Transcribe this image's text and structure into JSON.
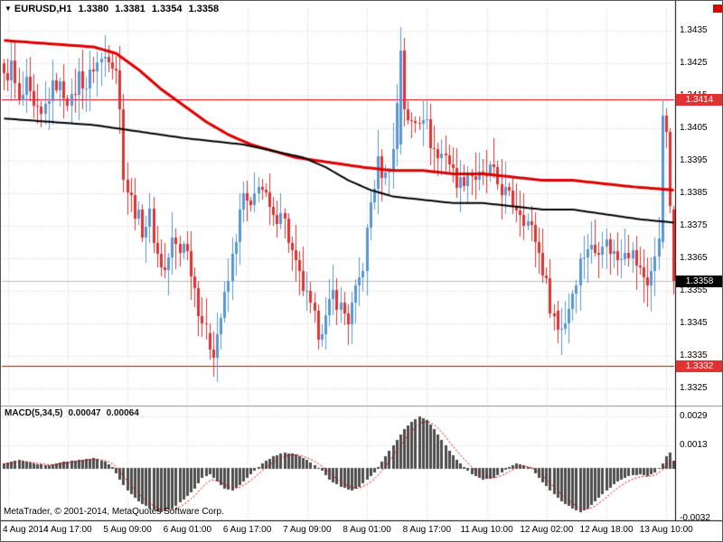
{
  "header": {
    "marker": "▼",
    "symbol": "EURUSD,H1",
    "open": "1.3380",
    "high": "1.3381",
    "low": "1.3354",
    "close": "1.3358"
  },
  "macd_header": {
    "title": "MACD(5,34,5)",
    "value": "0.00047",
    "signal": "0.00064"
  },
  "footer": {
    "copyright": "MetaTrader, © 2001-2014, MetaQuotes Software Corp."
  },
  "colors": {
    "bull": "#5a96d2",
    "bear": "#e03232",
    "ma_fast": "#dd0000",
    "ma_slow": "#000000",
    "grid": "#cdcdcd",
    "histogram": "#4d4d4d",
    "signal": "#dd0000",
    "hline": "#dd0000",
    "badge_red_bg": "#e03232",
    "badge_black_bg": "#000000",
    "current_line": "#c0c0c0",
    "separator": "#909090",
    "frame": "#000000"
  },
  "price_scale": {
    "labels": [
      "1.3435",
      "1.3425",
      "1.3415",
      "1.3405",
      "1.3395",
      "1.3385",
      "1.3375",
      "1.3365",
      "1.3355",
      "1.3345",
      "1.3335",
      "1.3325"
    ]
  },
  "macd_scale": {
    "labels": [
      {
        "text": "0.0029",
        "value": 0.0029
      },
      {
        "text": "0.0013",
        "value": 0.0013
      },
      {
        "text": "-0.0032",
        "value": -0.0032
      }
    ]
  },
  "time_scale": {
    "labels": [
      {
        "text": "4 Aug 2014",
        "candle": 1
      },
      {
        "text": "4 Aug 17:00",
        "candle": 17
      },
      {
        "text": "5 Aug 09:00",
        "candle": 33
      },
      {
        "text": "6 Aug 01:00",
        "candle": 49
      },
      {
        "text": "6 Aug 17:00",
        "candle": 65
      },
      {
        "text": "7 Aug 09:00",
        "candle": 81
      },
      {
        "text": "8 Aug 01:00",
        "candle": 97
      },
      {
        "text": "8 Aug 17:00",
        "candle": 113
      },
      {
        "text": "11 Aug 10:00",
        "candle": 129
      },
      {
        "text": "12 Aug 02:00",
        "candle": 145
      },
      {
        "text": "12 Aug 18:00",
        "candle": 161
      },
      {
        "text": "13 Aug 10:00",
        "candle": 177
      }
    ]
  },
  "chart_data": {
    "type": "candlestick",
    "symbol": "EURUSD",
    "timeframe": "H1",
    "title": "EURUSD,H1",
    "last_ohlc": {
      "open": 1.338,
      "high": 1.3381,
      "low": 1.3354,
      "close": 1.3358
    },
    "price_axis": {
      "min": 1.332,
      "max": 1.3443,
      "tick_step": 0.001,
      "ticks": [
        1.3435,
        1.3425,
        1.3415,
        1.3405,
        1.3395,
        1.3385,
        1.3375,
        1.3365,
        1.3355,
        1.3345,
        1.3335,
        1.3325
      ]
    },
    "candles": {
      "count": 180,
      "close_waypoints": [
        [
          0,
          1.342
        ],
        [
          2,
          1.3424
        ],
        [
          4,
          1.3412
        ],
        [
          6,
          1.3418
        ],
        [
          8,
          1.341
        ],
        [
          10,
          1.3408
        ],
        [
          12,
          1.3415
        ],
        [
          14,
          1.3419
        ],
        [
          16,
          1.3416
        ],
        [
          18,
          1.3413
        ],
        [
          20,
          1.3421
        ],
        [
          22,
          1.3418
        ],
        [
          24,
          1.3424
        ],
        [
          26,
          1.3426
        ],
        [
          28,
          1.3428
        ],
        [
          30,
          1.3424
        ],
        [
          31,
          1.341
        ],
        [
          32,
          1.3392
        ],
        [
          33,
          1.3386
        ],
        [
          35,
          1.338
        ],
        [
          37,
          1.3374
        ],
        [
          39,
          1.3378
        ],
        [
          41,
          1.3366
        ],
        [
          43,
          1.3361
        ],
        [
          45,
          1.337
        ],
        [
          47,
          1.3367
        ],
        [
          48,
          1.3371
        ],
        [
          50,
          1.3362
        ],
        [
          52,
          1.335
        ],
        [
          54,
          1.3342
        ],
        [
          56,
          1.3337
        ],
        [
          58,
          1.3347
        ],
        [
          60,
          1.3358
        ],
        [
          62,
          1.3372
        ],
        [
          64,
          1.3384
        ],
        [
          66,
          1.3379
        ],
        [
          68,
          1.3389
        ],
        [
          70,
          1.3383
        ],
        [
          72,
          1.3376
        ],
        [
          74,
          1.3381
        ],
        [
          76,
          1.3371
        ],
        [
          78,
          1.3362
        ],
        [
          80,
          1.3356
        ],
        [
          82,
          1.3349
        ],
        [
          84,
          1.3343
        ],
        [
          86,
          1.3346
        ],
        [
          88,
          1.3354
        ],
        [
          90,
          1.335
        ],
        [
          92,
          1.3346
        ],
        [
          94,
          1.3354
        ],
        [
          96,
          1.3363
        ],
        [
          98,
          1.3382
        ],
        [
          100,
          1.3394
        ],
        [
          102,
          1.339
        ],
        [
          104,
          1.3398
        ],
        [
          106,
          1.3429
        ],
        [
          107,
          1.3412
        ],
        [
          108,
          1.3406
        ],
        [
          110,
          1.3408
        ],
        [
          112,
          1.341
        ],
        [
          114,
          1.3401
        ],
        [
          116,
          1.3396
        ],
        [
          118,
          1.3398
        ],
        [
          120,
          1.3391
        ],
        [
          122,
          1.3388
        ],
        [
          124,
          1.3392
        ],
        [
          126,
          1.339
        ],
        [
          128,
          1.3389
        ],
        [
          130,
          1.3392
        ],
        [
          132,
          1.3388
        ],
        [
          134,
          1.3385
        ],
        [
          136,
          1.3382
        ],
        [
          138,
          1.338
        ],
        [
          140,
          1.3376
        ],
        [
          142,
          1.3371
        ],
        [
          144,
          1.3362
        ],
        [
          146,
          1.3351
        ],
        [
          148,
          1.3343
        ],
        [
          150,
          1.3346
        ],
        [
          152,
          1.3355
        ],
        [
          154,
          1.3364
        ],
        [
          156,
          1.3369
        ],
        [
          158,
          1.3367
        ],
        [
          160,
          1.3371
        ],
        [
          162,
          1.3368
        ],
        [
          164,
          1.3365
        ],
        [
          166,
          1.3369
        ],
        [
          168,
          1.3366
        ],
        [
          170,
          1.3361
        ],
        [
          172,
          1.3358
        ],
        [
          174,
          1.3364
        ],
        [
          175,
          1.3372
        ],
        [
          176,
          1.3409
        ],
        [
          177,
          1.3404
        ],
        [
          178,
          1.3381
        ],
        [
          179,
          1.3358
        ]
      ],
      "overrides": {
        "55": [
          1.3342,
          1.3345,
          1.3334,
          1.3337
        ],
        "106": [
          1.34,
          1.3436,
          1.3397,
          1.3429
        ],
        "148": [
          1.3349,
          1.3352,
          1.3339,
          1.3343
        ],
        "176": [
          1.337,
          1.3414,
          1.3368,
          1.3409
        ],
        "177": [
          1.3409,
          1.3411,
          1.3399,
          1.3404
        ],
        "178": [
          1.3404,
          1.3405,
          1.3379,
          1.3381
        ],
        "179": [
          1.338,
          1.3381,
          1.3354,
          1.3358
        ]
      },
      "wick_noise": 0.0007
    },
    "moving_averages": [
      {
        "name": "ma-fast-red",
        "width": 3,
        "waypoints": [
          [
            0,
            1.3432
          ],
          [
            12,
            1.3431
          ],
          [
            24,
            1.343
          ],
          [
            30,
            1.3428
          ],
          [
            36,
            1.3423
          ],
          [
            42,
            1.3417
          ],
          [
            48,
            1.3412
          ],
          [
            54,
            1.3407
          ],
          [
            60,
            1.3403
          ],
          [
            66,
            1.34
          ],
          [
            72,
            1.3398
          ],
          [
            78,
            1.3396
          ],
          [
            84,
            1.3395
          ],
          [
            90,
            1.3394
          ],
          [
            96,
            1.3393
          ],
          [
            104,
            1.3392
          ],
          [
            112,
            1.3392
          ],
          [
            120,
            1.3391
          ],
          [
            128,
            1.3391
          ],
          [
            136,
            1.339
          ],
          [
            144,
            1.3389
          ],
          [
            152,
            1.3389
          ],
          [
            160,
            1.3388
          ],
          [
            168,
            1.3387
          ],
          [
            179,
            1.3386
          ]
        ]
      },
      {
        "name": "ma-slow-black",
        "width": 2,
        "waypoints": [
          [
            0,
            1.3408
          ],
          [
            12,
            1.3407
          ],
          [
            24,
            1.3406
          ],
          [
            36,
            1.3404
          ],
          [
            48,
            1.3402
          ],
          [
            56,
            1.3401
          ],
          [
            64,
            1.34
          ],
          [
            72,
            1.3398
          ],
          [
            80,
            1.3396
          ],
          [
            86,
            1.3393
          ],
          [
            92,
            1.3389
          ],
          [
            98,
            1.3386
          ],
          [
            104,
            1.3384
          ],
          [
            112,
            1.3383
          ],
          [
            120,
            1.3382
          ],
          [
            128,
            1.3382
          ],
          [
            136,
            1.3381
          ],
          [
            144,
            1.338
          ],
          [
            152,
            1.338
          ],
          [
            158,
            1.3379
          ],
          [
            164,
            1.3378
          ],
          [
            170,
            1.3377
          ],
          [
            179,
            1.3376
          ]
        ]
      }
    ],
    "horizontal_lines": [
      {
        "price": 1.3414,
        "label": "1.3414"
      },
      {
        "price": 1.3332,
        "label": "1.3332"
      }
    ],
    "current_price": {
      "value": 1.3358,
      "label": "1.3358"
    },
    "macd": {
      "title": "MACD(5,34,5)",
      "params": [
        5,
        34,
        5
      ],
      "value": 0.00047,
      "signal_value": 0.00064,
      "axis_ticks": [
        0.0029,
        0.0013,
        -0.0032
      ],
      "histogram_waypoints": [
        [
          0,
          0.0003
        ],
        [
          4,
          0.0005
        ],
        [
          8,
          0.0003
        ],
        [
          12,
          0.0002
        ],
        [
          16,
          0.0004
        ],
        [
          20,
          0.0005
        ],
        [
          24,
          0.0006
        ],
        [
          27,
          0.0004
        ],
        [
          29,
          0.0001
        ],
        [
          31,
          -0.0006
        ],
        [
          33,
          -0.0012
        ],
        [
          36,
          -0.0018
        ],
        [
          39,
          -0.0022
        ],
        [
          42,
          -0.0024
        ],
        [
          45,
          -0.0022
        ],
        [
          48,
          -0.0017
        ],
        [
          51,
          -0.0011
        ],
        [
          53,
          -0.0005
        ],
        [
          55,
          -0.0003
        ],
        [
          57,
          -0.0007
        ],
        [
          59,
          -0.0011
        ],
        [
          61,
          -0.0012
        ],
        [
          63,
          -0.0009
        ],
        [
          65,
          -0.0005
        ],
        [
          67,
          -0.0001
        ],
        [
          69,
          0.0003
        ],
        [
          72,
          0.0007
        ],
        [
          75,
          0.0009
        ],
        [
          78,
          0.0008
        ],
        [
          81,
          0.0005
        ],
        [
          83,
          0.0002
        ],
        [
          85,
          -0.0001
        ],
        [
          87,
          -0.0006
        ],
        [
          90,
          -0.001
        ],
        [
          93,
          -0.0012
        ],
        [
          95,
          -0.001
        ],
        [
          97,
          -0.0006
        ],
        [
          99,
          -0.0002
        ],
        [
          101,
          0.0004
        ],
        [
          103,
          0.001
        ],
        [
          105,
          0.0016
        ],
        [
          107,
          0.0022
        ],
        [
          109,
          0.0026
        ],
        [
          111,
          0.0029
        ],
        [
          113,
          0.0027
        ],
        [
          115,
          0.0022
        ],
        [
          117,
          0.0016
        ],
        [
          119,
          0.001
        ],
        [
          121,
          0.0005
        ],
        [
          123,
          0.0001
        ],
        [
          125,
          -0.0003
        ],
        [
          128,
          -0.0006
        ],
        [
          131,
          -0.0005
        ],
        [
          133,
          -0.0002
        ],
        [
          135,
          0.0001
        ],
        [
          137,
          0.0003
        ],
        [
          139,
          0.0002
        ],
        [
          141,
          0.0
        ],
        [
          143,
          -0.0005
        ],
        [
          146,
          -0.0012
        ],
        [
          149,
          -0.0018
        ],
        [
          152,
          -0.0022
        ],
        [
          154,
          -0.0024
        ],
        [
          156,
          -0.0022
        ],
        [
          158,
          -0.0018
        ],
        [
          161,
          -0.0012
        ],
        [
          164,
          -0.0007
        ],
        [
          167,
          -0.0004
        ],
        [
          170,
          -0.0003
        ],
        [
          172,
          -0.0004
        ],
        [
          174,
          -0.0002
        ],
        [
          176,
          0.0003
        ],
        [
          177,
          0.0007
        ],
        [
          178,
          0.0009
        ],
        [
          179,
          0.00047
        ]
      ]
    }
  }
}
